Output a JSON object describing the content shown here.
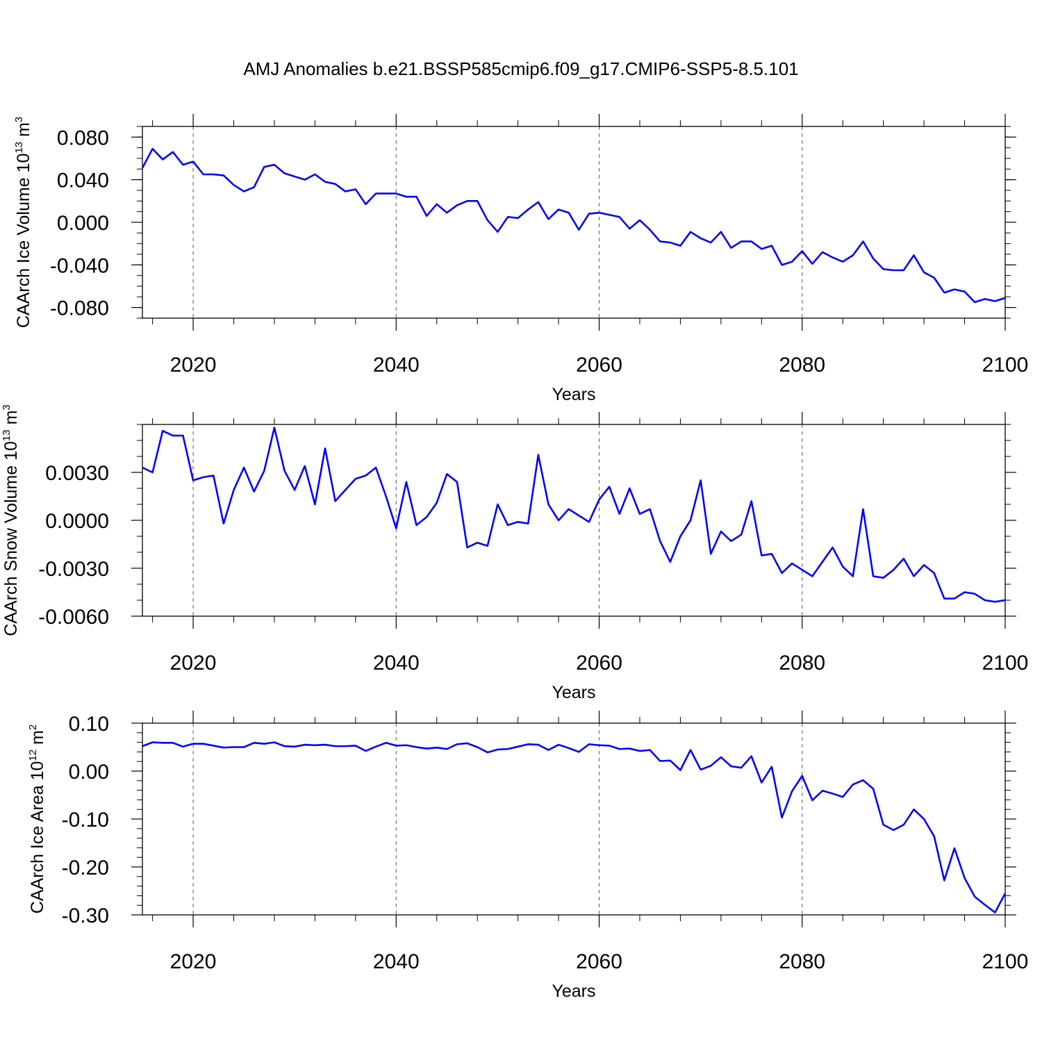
{
  "title": "AMJ Anomalies b.e21.BSSP585cmip6.f09_g17.CMIP6-SSP5-8.5.101",
  "line_color": "#0000ff",
  "chart_data": [
    {
      "type": "line",
      "series_name": "",
      "ylabel": "CAArch Ice Volume 10",
      "ylabel_exp": "13",
      "ylabel_unit": " m",
      "ylabel_unit_exp": "3",
      "xlabel": "Years",
      "xlim": [
        2015,
        2100
      ],
      "ylim": [
        -0.09,
        0.09
      ],
      "yticks": [
        -0.08,
        -0.04,
        0.0,
        0.04,
        0.08
      ],
      "yticklabels": [
        "-0.080",
        "-0.040",
        "0.000",
        "0.040",
        "0.080"
      ],
      "yminor_step": 0.01,
      "xticks": [
        2020,
        2040,
        2060,
        2080,
        2100
      ],
      "xticklabels": [
        "2020",
        "2040",
        "2060",
        "2080",
        "2100"
      ],
      "x_start": 2015,
      "values": [
        0.051,
        0.069,
        0.059,
        0.066,
        0.054,
        0.057,
        0.045,
        0.045,
        0.044,
        0.035,
        0.029,
        0.033,
        0.052,
        0.054,
        0.046,
        0.043,
        0.04,
        0.045,
        0.038,
        0.036,
        0.029,
        0.031,
        0.017,
        0.027,
        0.027,
        0.027,
        0.024,
        0.024,
        0.006,
        0.017,
        0.009,
        0.016,
        0.02,
        0.02,
        0.002,
        -0.009,
        0.005,
        0.004,
        0.012,
        0.019,
        0.003,
        0.012,
        0.009,
        -0.007,
        0.008,
        0.009,
        0.007,
        0.005,
        -0.006,
        0.002,
        -0.007,
        -0.018,
        -0.019,
        -0.022,
        -0.009,
        -0.015,
        -0.019,
        -0.009,
        -0.024,
        -0.018,
        -0.018,
        -0.025,
        -0.022,
        -0.04,
        -0.037,
        -0.027,
        -0.039,
        -0.028,
        -0.033,
        -0.037,
        -0.031,
        -0.018,
        -0.034,
        -0.044,
        -0.045,
        -0.045,
        -0.031,
        -0.047,
        -0.052,
        -0.066,
        -0.063,
        -0.065,
        -0.075,
        -0.072,
        -0.074,
        -0.071
      ]
    },
    {
      "type": "line",
      "series_name": "",
      "ylabel": "CAArch Snow Volume 10",
      "ylabel_exp": "13",
      "ylabel_unit": " m",
      "ylabel_unit_exp": "3",
      "xlabel": "Years",
      "xlim": [
        2015,
        2100
      ],
      "ylim": [
        -0.006,
        0.006
      ],
      "yticks": [
        -0.006,
        -0.003,
        0.0,
        0.003
      ],
      "yticklabels": [
        "-0.0060",
        "-0.0030",
        "0.0000",
        "0.0030"
      ],
      "yminor_step": 0.001,
      "xticks": [
        2020,
        2040,
        2060,
        2080,
        2100
      ],
      "xticklabels": [
        "2020",
        "2040",
        "2060",
        "2080",
        "2100"
      ],
      "x_start": 2015,
      "values": [
        0.0033,
        0.003,
        0.0056,
        0.0053,
        0.0053,
        0.0025,
        0.0027,
        0.0028,
        -0.0002,
        0.0019,
        0.0033,
        0.0018,
        0.0031,
        0.0058,
        0.0031,
        0.0019,
        0.0034,
        0.001,
        0.0045,
        0.0012,
        0.0019,
        0.0026,
        0.0028,
        0.0033,
        0.0015,
        -0.0005,
        0.0024,
        -0.0003,
        0.0002,
        0.0011,
        0.0029,
        0.0024,
        -0.0017,
        -0.0014,
        -0.0016,
        0.001,
        -0.0003,
        -0.0001,
        -0.0002,
        0.0041,
        0.001,
        0.0,
        0.0007,
        0.0003,
        -0.0001,
        0.0013,
        0.0021,
        0.0004,
        0.002,
        0.0004,
        0.0007,
        -0.0013,
        -0.0026,
        -0.001,
        0.0,
        0.0025,
        -0.0021,
        -0.0007,
        -0.0013,
        -0.0009,
        0.0012,
        -0.0022,
        -0.0021,
        -0.0033,
        -0.0027,
        -0.0031,
        -0.0035,
        -0.0026,
        -0.0017,
        -0.0029,
        -0.0035,
        0.0007,
        -0.0035,
        -0.0036,
        -0.0031,
        -0.0024,
        -0.0035,
        -0.0028,
        -0.0033,
        -0.0049,
        -0.0049,
        -0.0045,
        -0.0046,
        -0.005,
        -0.0051,
        -0.005
      ]
    },
    {
      "type": "line",
      "series_name": "",
      "ylabel": "CAArch Ice Area 10",
      "ylabel_exp": "12",
      "ylabel_unit": " m",
      "ylabel_unit_exp": "2",
      "xlabel": "Years",
      "xlim": [
        2015,
        2100
      ],
      "ylim": [
        -0.3,
        0.1
      ],
      "yticks": [
        -0.3,
        -0.2,
        -0.1,
        0.0,
        0.1
      ],
      "yticklabels": [
        "-0.30",
        "-0.20",
        "-0.10",
        "0.00",
        "0.10"
      ],
      "yminor_step": 0.02,
      "xticks": [
        2020,
        2040,
        2060,
        2080,
        2100
      ],
      "xticklabels": [
        "2020",
        "2040",
        "2060",
        "2080",
        "2100"
      ],
      "x_start": 2015,
      "values": [
        0.052,
        0.06,
        0.059,
        0.059,
        0.051,
        0.057,
        0.057,
        0.053,
        0.049,
        0.05,
        0.05,
        0.059,
        0.057,
        0.06,
        0.052,
        0.051,
        0.055,
        0.054,
        0.055,
        0.052,
        0.052,
        0.053,
        0.042,
        0.051,
        0.059,
        0.053,
        0.054,
        0.05,
        0.047,
        0.049,
        0.046,
        0.056,
        0.058,
        0.05,
        0.039,
        0.045,
        0.046,
        0.051,
        0.056,
        0.055,
        0.044,
        0.055,
        0.048,
        0.04,
        0.056,
        0.054,
        0.053,
        0.046,
        0.047,
        0.042,
        0.044,
        0.021,
        0.022,
        0.002,
        0.044,
        0.003,
        0.011,
        0.029,
        0.01,
        0.007,
        0.031,
        -0.024,
        0.009,
        -0.097,
        -0.042,
        -0.01,
        -0.061,
        -0.041,
        -0.047,
        -0.054,
        -0.028,
        -0.019,
        -0.037,
        -0.112,
        -0.123,
        -0.112,
        -0.08,
        -0.1,
        -0.136,
        -0.228,
        -0.161,
        -0.223,
        -0.262,
        -0.279,
        -0.295,
        -0.255
      ]
    }
  ]
}
